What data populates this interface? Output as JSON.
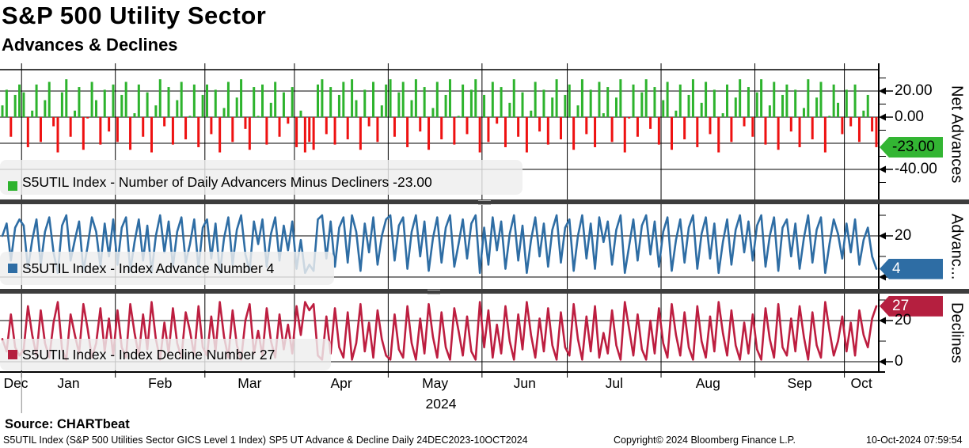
{
  "header": {
    "title": "S&P 500 Utility Sector",
    "subtitle": "Advances & Declines"
  },
  "colors": {
    "advance_bar": "#2db32d",
    "decline_bar": "#ee1111",
    "advance_line": "#2e6da4",
    "decline_line": "#bd1e40",
    "net_tag_bg": "#33b533",
    "net_tag_text": "#000000",
    "advance_tag_bg": "#2e6da4",
    "decline_tag_bg": "#b51f3f",
    "tag_text_light": "#ffffff",
    "grid": "#000000",
    "separator": "#3d3d3d"
  },
  "panels": [
    {
      "axis_title": "Net Advances",
      "legend": "S5UTIL Index - Number of Daily Advancers Minus Decliners -23.00",
      "tag": {
        "label": "-23.00",
        "value": -23
      },
      "ticks_major": [
        {
          "value": 20,
          "label": "20.00"
        },
        {
          "value": 0,
          "label": "0.00"
        },
        {
          "value": -40,
          "label": "-40.00"
        }
      ],
      "ticks_minor": [
        30,
        10,
        -10,
        -30,
        -50
      ],
      "gridlines": [
        20,
        0,
        -20,
        -40
      ]
    },
    {
      "axis_title": "Advanc...",
      "legend": "S5UTIL Index - Index Advance Number 4",
      "tag": {
        "label": "4",
        "value": 4
      },
      "ticks_major": [
        {
          "value": 20,
          "label": "20"
        },
        {
          "value": 0,
          "label": ""
        }
      ],
      "ticks_minor": [
        30,
        10
      ],
      "gridlines": [
        20,
        0
      ]
    },
    {
      "axis_title": "Declines",
      "legend": "S5UTIL Index - Index Decline Number 27",
      "tag": {
        "label": "27",
        "value": 27
      },
      "ticks_major": [
        {
          "value": 20,
          "label": "20"
        },
        {
          "value": 0,
          "label": "0"
        }
      ],
      "ticks_minor": [
        30,
        10
      ],
      "gridlines": [
        20,
        0
      ]
    }
  ],
  "x_axis": {
    "year": "2024",
    "months": [
      {
        "label": "Dec",
        "business_days": 5
      },
      {
        "label": "Jan",
        "business_days": 22
      },
      {
        "label": "Feb",
        "business_days": 21
      },
      {
        "label": "Mar",
        "business_days": 21
      },
      {
        "label": "Apr",
        "business_days": 22
      },
      {
        "label": "May",
        "business_days": 22
      },
      {
        "label": "Jun",
        "business_days": 20
      },
      {
        "label": "Jul",
        "business_days": 22
      },
      {
        "label": "Aug",
        "business_days": 22
      },
      {
        "label": "Sep",
        "business_days": 21
      },
      {
        "label": "Oct",
        "business_days": 8
      }
    ]
  },
  "footer": {
    "source": "Source: CHARTbeat",
    "description": "S5UTIL Index (S&P 500 Utilities Sector GICS Level 1 Index) SP5 UT Advance & Decline  Daily 24DEC2023-10OCT2024",
    "copyright": "Copyright© 2024 Bloomberg Finance L.P.",
    "timestamp": "10-Oct-2024 07:59:54"
  },
  "chart_data": [
    {
      "type": "bar",
      "name": "S5UTIL Index - Number of Daily Advancers Minus Decliners",
      "title": "Net Advances",
      "last_value": -23,
      "ylim": [
        -50,
        36
      ],
      "x_span": "24DEC2023-10OCT2024 (daily, business days)",
      "values": [
        9,
        21,
        -15,
        17,
        25,
        19,
        -23,
        5,
        25,
        -19,
        13,
        27,
        -7,
        -27,
        19,
        29,
        -15,
        5,
        23,
        -25,
        -1,
        27,
        13,
        -21,
        21,
        -11,
        25,
        -19,
        17,
        27,
        -25,
        3,
        25,
        -15,
        19,
        -27,
        9,
        29,
        -7,
        23,
        -21,
        13,
        27,
        -17,
        1,
        25,
        -23,
        17,
        25,
        -13,
        21,
        -27,
        7,
        27,
        -19,
        15,
        29,
        -9,
        -25,
        23,
        1,
        25,
        -21,
        11,
        27,
        -15,
        19,
        -5,
        23,
        -23,
        5,
        -27,
        -19,
        -25,
        25,
        29,
        -13,
        23,
        -21,
        17,
        27,
        -17,
        29,
        13,
        -25,
        21,
        -7,
        27,
        -19,
        9,
        25,
        29,
        -15,
        19,
        27,
        -23,
        13,
        29,
        -11,
        23,
        -25,
        7,
        27,
        -17,
        17,
        29,
        -21,
        1,
        25,
        -13,
        21,
        29,
        -27,
        17,
        -19,
        27,
        -5,
        23,
        -23,
        11,
        29,
        -15,
        19,
        -27,
        5,
        27,
        -11,
        21,
        -21,
        15,
        29,
        -17,
        17,
        25,
        -25,
        9,
        29,
        -13,
        21,
        -23,
        27,
        3,
        23,
        -19,
        15,
        29,
        -27,
        -1,
        25,
        -15,
        19,
        29,
        -9,
        23,
        -21,
        13,
        27,
        -25,
        5,
        25,
        -17,
        17,
        29,
        -23,
        11,
        27,
        -13,
        21,
        -27,
        3,
        25,
        -19,
        15,
        29,
        -7,
        23,
        -15,
        19,
        29,
        -21,
        9,
        27,
        -25,
        17,
        25,
        -11,
        21,
        -23,
        7,
        29,
        -17,
        15,
        27,
        -27,
        1,
        25,
        11,
        -13,
        21,
        -7,
        25,
        -19,
        5,
        17,
        -11,
        -23
      ]
    },
    {
      "type": "line",
      "name": "S5UTIL Index - Index Advance Number",
      "title": "Advances",
      "last_value": 4,
      "ylim": [
        -6,
        36
      ],
      "values": [
        20,
        26,
        8,
        24,
        28,
        25,
        4,
        18,
        28,
        6,
        22,
        29,
        12,
        2,
        25,
        30,
        8,
        18,
        27,
        3,
        15,
        29,
        22,
        5,
        26,
        10,
        28,
        6,
        24,
        29,
        3,
        17,
        28,
        8,
        25,
        2,
        20,
        30,
        12,
        27,
        5,
        22,
        29,
        7,
        16,
        28,
        4,
        24,
        28,
        9,
        26,
        2,
        19,
        29,
        6,
        23,
        30,
        11,
        3,
        27,
        16,
        28,
        5,
        21,
        29,
        8,
        25,
        13,
        27,
        4,
        18,
        2,
        6,
        3,
        28,
        30,
        9,
        27,
        5,
        24,
        29,
        7,
        30,
        22,
        3,
        26,
        12,
        29,
        6,
        20,
        28,
        30,
        8,
        25,
        29,
        4,
        22,
        30,
        10,
        27,
        3,
        19,
        29,
        7,
        24,
        30,
        5,
        16,
        28,
        9,
        26,
        30,
        2,
        24,
        6,
        29,
        13,
        27,
        4,
        21,
        30,
        8,
        25,
        2,
        18,
        29,
        10,
        26,
        5,
        23,
        30,
        7,
        24,
        28,
        3,
        20,
        30,
        9,
        26,
        4,
        29,
        17,
        27,
        6,
        23,
        30,
        2,
        15,
        28,
        8,
        25,
        30,
        11,
        27,
        5,
        22,
        29,
        3,
        18,
        28,
        7,
        24,
        30,
        4,
        21,
        29,
        9,
        26,
        2,
        17,
        28,
        6,
        23,
        30,
        12,
        27,
        8,
        25,
        30,
        5,
        20,
        29,
        3,
        24,
        28,
        10,
        26,
        4,
        19,
        30,
        7,
        23,
        29,
        2,
        16,
        28,
        21,
        9,
        26,
        12,
        28,
        6,
        18,
        24,
        10,
        4
      ]
    },
    {
      "type": "line",
      "name": "S5UTIL Index - Index Decline Number",
      "title": "Declines",
      "last_value": 27,
      "ylim": [
        -5,
        34
      ],
      "values": [
        11,
        5,
        23,
        7,
        3,
        6,
        27,
        13,
        3,
        25,
        9,
        2,
        19,
        29,
        6,
        1,
        23,
        13,
        4,
        28,
        16,
        2,
        9,
        26,
        5,
        21,
        3,
        25,
        7,
        2,
        28,
        14,
        3,
        23,
        6,
        29,
        11,
        1,
        19,
        4,
        26,
        9,
        2,
        24,
        15,
        3,
        27,
        7,
        3,
        22,
        5,
        29,
        12,
        2,
        25,
        8,
        1,
        20,
        28,
        4,
        15,
        3,
        26,
        10,
        2,
        23,
        6,
        18,
        4,
        27,
        13,
        29,
        25,
        28,
        3,
        1,
        22,
        4,
        26,
        7,
        2,
        24,
        1,
        9,
        28,
        5,
        19,
        2,
        25,
        11,
        3,
        1,
        23,
        6,
        2,
        27,
        9,
        1,
        21,
        4,
        28,
        12,
        2,
        24,
        7,
        1,
        26,
        15,
        3,
        22,
        5,
        1,
        29,
        7,
        25,
        2,
        18,
        4,
        27,
        10,
        1,
        23,
        6,
        29,
        13,
        2,
        21,
        5,
        26,
        8,
        1,
        24,
        7,
        3,
        28,
        11,
        1,
        22,
        5,
        27,
        2,
        14,
        4,
        25,
        8,
        1,
        29,
        16,
        3,
        23,
        6,
        1,
        20,
        4,
        26,
        9,
        2,
        28,
        13,
        3,
        24,
        7,
        1,
        27,
        10,
        2,
        22,
        5,
        29,
        14,
        3,
        25,
        8,
        1,
        19,
        4,
        23,
        6,
        1,
        26,
        11,
        2,
        28,
        7,
        3,
        21,
        5,
        27,
        12,
        1,
        24,
        8,
        2,
        29,
        15,
        3,
        10,
        22,
        5,
        19,
        3,
        25,
        13,
        7,
        21,
        27
      ]
    }
  ]
}
